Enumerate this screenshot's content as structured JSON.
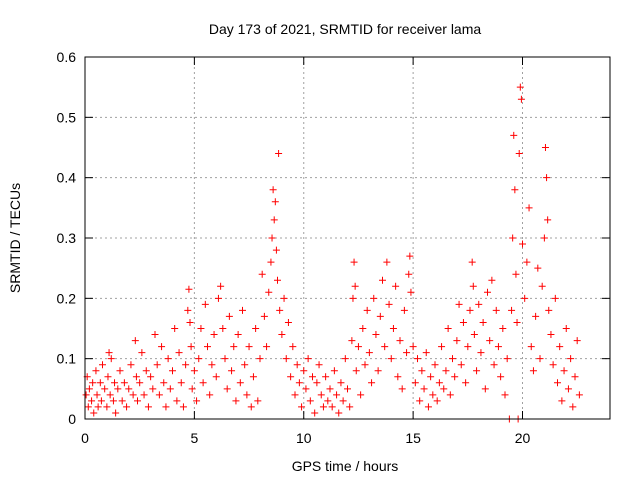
{
  "chart_data": {
    "type": "scatter",
    "title": "Day 173 of 2021, SRMTID for receiver lama",
    "xlabel": "GPS time / hours",
    "ylabel": "SRMTID / TECUs",
    "xlim": [
      0,
      24
    ],
    "ylim": [
      0,
      0.6
    ],
    "xticks": [
      0,
      5,
      10,
      15,
      20
    ],
    "xtick_labels": [
      "0",
      "5",
      "10",
      "15",
      "20"
    ],
    "yticks": [
      0,
      0.1,
      0.2,
      0.3,
      0.4,
      0.5,
      0.6
    ],
    "ytick_labels": [
      "0",
      "0.1",
      "0.2",
      "0.3",
      "0.4",
      "0.5",
      "0.6"
    ],
    "grid": true,
    "marker": "+",
    "marker_color": "#ff0000",
    "series": [
      {
        "name": "SRMTID",
        "points": [
          [
            0.05,
            0.04
          ],
          [
            0.1,
            0.07
          ],
          [
            0.15,
            0.02
          ],
          [
            0.2,
            0.05
          ],
          [
            0.3,
            0.03
          ],
          [
            0.35,
            0.06
          ],
          [
            0.4,
            0.01
          ],
          [
            0.5,
            0.08
          ],
          [
            0.55,
            0.04
          ],
          [
            0.6,
            0.02
          ],
          [
            0.7,
            0.06
          ],
          [
            0.75,
            0.03
          ],
          [
            0.8,
            0.09
          ],
          [
            0.9,
            0.05
          ],
          [
            1.0,
            0.02
          ],
          [
            1.05,
            0.07
          ],
          [
            1.1,
            0.11
          ],
          [
            1.15,
            0.04
          ],
          [
            1.2,
            0.1
          ],
          [
            1.3,
            0.03
          ],
          [
            1.35,
            0.06
          ],
          [
            1.4,
            0.01
          ],
          [
            1.5,
            0.05
          ],
          [
            1.6,
            0.08
          ],
          [
            1.7,
            0.03
          ],
          [
            1.8,
            0.06
          ],
          [
            1.9,
            0.02
          ],
          [
            2.0,
            0.05
          ],
          [
            2.1,
            0.09
          ],
          [
            2.2,
            0.04
          ],
          [
            2.3,
            0.13
          ],
          [
            2.35,
            0.07
          ],
          [
            2.4,
            0.03
          ],
          [
            2.5,
            0.06
          ],
          [
            2.6,
            0.11
          ],
          [
            2.7,
            0.04
          ],
          [
            2.8,
            0.08
          ],
          [
            2.9,
            0.02
          ],
          [
            3.0,
            0.07
          ],
          [
            3.1,
            0.05
          ],
          [
            3.2,
            0.14
          ],
          [
            3.3,
            0.09
          ],
          [
            3.4,
            0.04
          ],
          [
            3.5,
            0.12
          ],
          [
            3.6,
            0.06
          ],
          [
            3.7,
            0.02
          ],
          [
            3.8,
            0.1
          ],
          [
            3.9,
            0.05
          ],
          [
            4.0,
            0.08
          ],
          [
            4.1,
            0.15
          ],
          [
            4.2,
            0.03
          ],
          [
            4.3,
            0.11
          ],
          [
            4.4,
            0.06
          ],
          [
            4.5,
            0.02
          ],
          [
            4.6,
            0.09
          ],
          [
            4.7,
            0.18
          ],
          [
            4.75,
            0.215
          ],
          [
            4.8,
            0.16
          ],
          [
            4.85,
            0.12
          ],
          [
            4.9,
            0.05
          ],
          [
            5.0,
            0.08
          ],
          [
            5.1,
            0.03
          ],
          [
            5.2,
            0.1
          ],
          [
            5.3,
            0.15
          ],
          [
            5.4,
            0.06
          ],
          [
            5.5,
            0.19
          ],
          [
            5.6,
            0.12
          ],
          [
            5.7,
            0.04
          ],
          [
            5.8,
            0.09
          ],
          [
            5.9,
            0.14
          ],
          [
            6.0,
            0.07
          ],
          [
            6.1,
            0.2
          ],
          [
            6.2,
            0.22
          ],
          [
            6.3,
            0.15
          ],
          [
            6.4,
            0.1
          ],
          [
            6.5,
            0.05
          ],
          [
            6.6,
            0.17
          ],
          [
            6.7,
            0.08
          ],
          [
            6.8,
            0.12
          ],
          [
            6.9,
            0.03
          ],
          [
            7.0,
            0.14
          ],
          [
            7.1,
            0.06
          ],
          [
            7.2,
            0.18
          ],
          [
            7.3,
            0.09
          ],
          [
            7.4,
            0.04
          ],
          [
            7.5,
            0.12
          ],
          [
            7.6,
            0.02
          ],
          [
            7.7,
            0.07
          ],
          [
            7.8,
            0.15
          ],
          [
            7.9,
            0.03
          ],
          [
            8.0,
            0.1
          ],
          [
            8.1,
            0.24
          ],
          [
            8.2,
            0.17
          ],
          [
            8.3,
            0.12
          ],
          [
            8.4,
            0.21
          ],
          [
            8.5,
            0.26
          ],
          [
            8.55,
            0.3
          ],
          [
            8.6,
            0.38
          ],
          [
            8.65,
            0.33
          ],
          [
            8.7,
            0.36
          ],
          [
            8.75,
            0.28
          ],
          [
            8.8,
            0.23
          ],
          [
            8.85,
            0.44
          ],
          [
            8.9,
            0.18
          ],
          [
            9.0,
            0.14
          ],
          [
            9.1,
            0.2
          ],
          [
            9.2,
            0.1
          ],
          [
            9.3,
            0.16
          ],
          [
            9.4,
            0.07
          ],
          [
            9.5,
            0.12
          ],
          [
            9.6,
            0.04
          ],
          [
            9.7,
            0.09
          ],
          [
            9.8,
            0.06
          ],
          [
            9.9,
            0.02
          ],
          [
            10.0,
            0.08
          ],
          [
            10.1,
            0.05
          ],
          [
            10.2,
            0.1
          ],
          [
            10.3,
            0.03
          ],
          [
            10.4,
            0.07
          ],
          [
            10.5,
            0.01
          ],
          [
            10.6,
            0.06
          ],
          [
            10.7,
            0.09
          ],
          [
            10.8,
            0.04
          ],
          [
            10.9,
            0.02
          ],
          [
            11.0,
            0.07
          ],
          [
            11.1,
            0.03
          ],
          [
            11.2,
            0.05
          ],
          [
            11.3,
            0.02
          ],
          [
            11.4,
            0.08
          ],
          [
            11.5,
            0.04
          ],
          [
            11.6,
            0.01
          ],
          [
            11.7,
            0.06
          ],
          [
            11.8,
            0.03
          ],
          [
            11.9,
            0.1
          ],
          [
            12.0,
            0.05
          ],
          [
            12.1,
            0.02
          ],
          [
            12.2,
            0.13
          ],
          [
            12.25,
            0.2
          ],
          [
            12.3,
            0.26
          ],
          [
            12.35,
            0.22
          ],
          [
            12.4,
            0.08
          ],
          [
            12.5,
            0.12
          ],
          [
            12.6,
            0.04
          ],
          [
            12.7,
            0.15
          ],
          [
            12.8,
            0.09
          ],
          [
            12.9,
            0.18
          ],
          [
            13.0,
            0.11
          ],
          [
            13.1,
            0.06
          ],
          [
            13.2,
            0.2
          ],
          [
            13.3,
            0.14
          ],
          [
            13.4,
            0.08
          ],
          [
            13.5,
            0.17
          ],
          [
            13.6,
            0.23
          ],
          [
            13.7,
            0.12
          ],
          [
            13.8,
            0.26
          ],
          [
            13.9,
            0.19
          ],
          [
            14.0,
            0.1
          ],
          [
            14.1,
            0.15
          ],
          [
            14.2,
            0.22
          ],
          [
            14.3,
            0.07
          ],
          [
            14.4,
            0.13
          ],
          [
            14.5,
            0.05
          ],
          [
            14.6,
            0.18
          ],
          [
            14.7,
            0.11
          ],
          [
            14.8,
            0.24
          ],
          [
            14.85,
            0.27
          ],
          [
            14.9,
            0.21
          ],
          [
            15.0,
            0.12
          ],
          [
            15.1,
            0.06
          ],
          [
            15.2,
            0.1
          ],
          [
            15.3,
            0.03
          ],
          [
            15.4,
            0.08
          ],
          [
            15.5,
            0.05
          ],
          [
            15.6,
            0.11
          ],
          [
            15.7,
            0.02
          ],
          [
            15.8,
            0.07
          ],
          [
            15.9,
            0.04
          ],
          [
            16.0,
            0.09
          ],
          [
            16.1,
            0.03
          ],
          [
            16.2,
            0.06
          ],
          [
            16.3,
            0.12
          ],
          [
            16.4,
            0.05
          ],
          [
            16.5,
            0.08
          ],
          [
            16.6,
            0.15
          ],
          [
            16.7,
            0.04
          ],
          [
            16.8,
            0.1
          ],
          [
            16.9,
            0.07
          ],
          [
            17.0,
            0.13
          ],
          [
            17.1,
            0.19
          ],
          [
            17.2,
            0.09
          ],
          [
            17.3,
            0.16
          ],
          [
            17.4,
            0.06
          ],
          [
            17.5,
            0.12
          ],
          [
            17.6,
            0.18
          ],
          [
            17.7,
            0.26
          ],
          [
            17.75,
            0.22
          ],
          [
            17.8,
            0.14
          ],
          [
            17.9,
            0.08
          ],
          [
            18.0,
            0.19
          ],
          [
            18.1,
            0.11
          ],
          [
            18.2,
            0.16
          ],
          [
            18.3,
            0.05
          ],
          [
            18.4,
            0.21
          ],
          [
            18.5,
            0.13
          ],
          [
            18.6,
            0.23
          ],
          [
            18.7,
            0.09
          ],
          [
            18.8,
            0.18
          ],
          [
            18.9,
            0.12
          ],
          [
            19.0,
            0.07
          ],
          [
            19.1,
            0.15
          ],
          [
            19.2,
            0.04
          ],
          [
            19.3,
            0.1
          ],
          [
            19.4,
            0.0
          ],
          [
            19.5,
            0.18
          ],
          [
            19.55,
            0.3
          ],
          [
            19.6,
            0.47
          ],
          [
            19.65,
            0.38
          ],
          [
            19.7,
            0.24
          ],
          [
            19.75,
            0.16
          ],
          [
            19.8,
            0.0
          ],
          [
            19.85,
            0.44
          ],
          [
            19.9,
            0.55
          ],
          [
            19.95,
            0.53
          ],
          [
            20.0,
            0.29
          ],
          [
            20.1,
            0.2
          ],
          [
            20.2,
            0.26
          ],
          [
            20.3,
            0.35
          ],
          [
            20.4,
            0.12
          ],
          [
            20.5,
            0.08
          ],
          [
            20.6,
            0.17
          ],
          [
            20.7,
            0.25
          ],
          [
            20.8,
            0.1
          ],
          [
            20.9,
            0.22
          ],
          [
            21.0,
            0.3
          ],
          [
            21.05,
            0.45
          ],
          [
            21.1,
            0.4
          ],
          [
            21.15,
            0.33
          ],
          [
            21.2,
            0.18
          ],
          [
            21.3,
            0.14
          ],
          [
            21.4,
            0.09
          ],
          [
            21.5,
            0.2
          ],
          [
            21.6,
            0.06
          ],
          [
            21.7,
            0.12
          ],
          [
            21.8,
            0.03
          ],
          [
            21.9,
            0.08
          ],
          [
            22.0,
            0.15
          ],
          [
            22.1,
            0.05
          ],
          [
            22.2,
            0.1
          ],
          [
            22.3,
            0.02
          ],
          [
            22.4,
            0.07
          ],
          [
            22.5,
            0.13
          ],
          [
            22.6,
            0.04
          ]
        ]
      }
    ]
  }
}
